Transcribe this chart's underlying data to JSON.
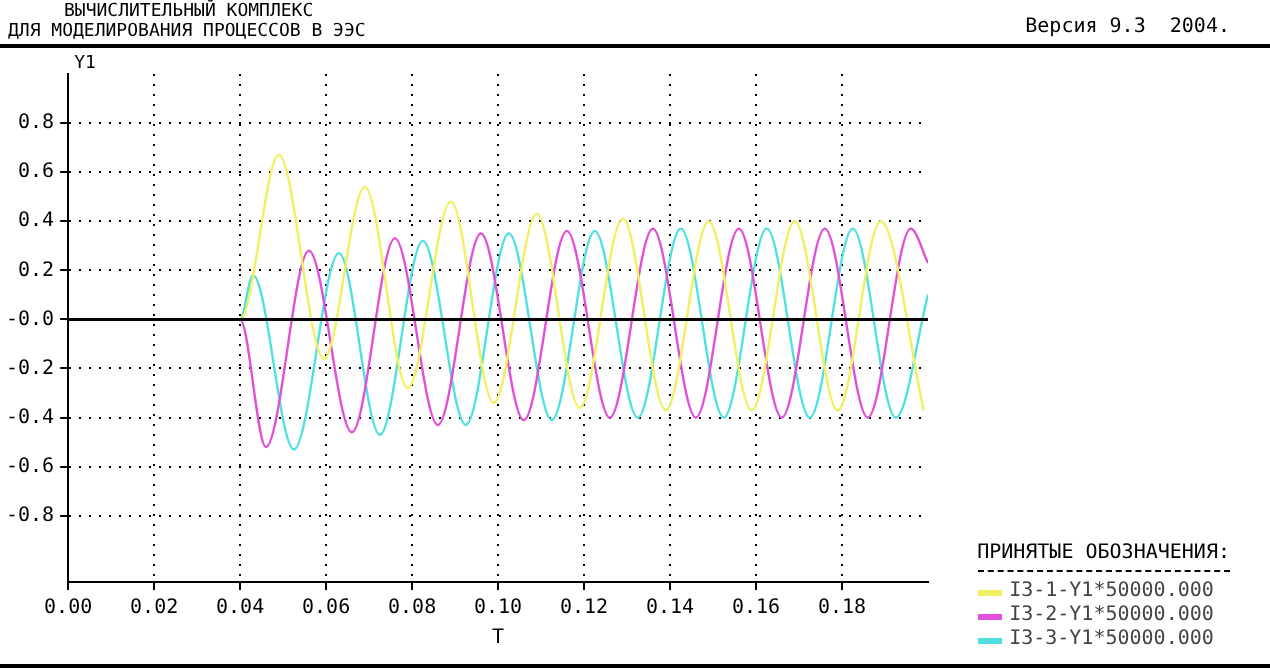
{
  "chart_data": {
    "type": "line",
    "title": "ВЫЧИСЛИТЕЛЬНЫЙ КОМПЛЕКС\nДЛЯ МОДЕЛИРОВАНИЯ ПРОЦЕССОВ В ЭЭС",
    "subtitle": "Версия 9.3  2004.",
    "xlabel": "T",
    "ylabel": "Y1",
    "legend_title": "ПРИНЯТЫЕ ОБОЗНАЧЕНИЯ:",
    "legend": "bottom right",
    "grid": true,
    "marker": "none",
    "line_style": "solid",
    "xlim": [
      0,
      0.2
    ],
    "ylim": [
      -1.07,
      1.0
    ],
    "xticks": [
      {
        "value": 0,
        "label": "0.00"
      },
      {
        "value": 0.02,
        "label": "0.02"
      },
      {
        "value": 0.04,
        "label": "0.04"
      },
      {
        "value": 0.06,
        "label": "0.06"
      },
      {
        "value": 0.08,
        "label": "0.08"
      },
      {
        "value": 0.1,
        "label": "0.10"
      },
      {
        "value": 0.12,
        "label": "0.12"
      },
      {
        "value": 0.14,
        "label": "0.14"
      },
      {
        "value": 0.16,
        "label": "0.16"
      },
      {
        "value": 0.18,
        "label": "0.18"
      }
    ],
    "yticks": [
      -0.8,
      -0.6,
      -0.4,
      -0.2,
      {
        "value": 0,
        "label": "-0.0"
      },
      0.2,
      0.4,
      0.6,
      0.8
    ],
    "ref_lines": [
      {
        "axis": "y",
        "value": 0,
        "color": "#000000"
      }
    ],
    "series": [
      {
        "name": "I3-1-Y1*50000.000",
        "color": "#f0f060",
        "x": [
          0,
          0.04,
          0.049,
          0.0595,
          0.069,
          0.079,
          0.089,
          0.099,
          0.109,
          0.119,
          0.129,
          0.139,
          0.149,
          0.159,
          0.169,
          0.179,
          0.189,
          0.199
        ],
        "values": [
          0,
          0,
          0.67,
          -0.16,
          0.54,
          -0.28,
          0.48,
          -0.34,
          0.43,
          -0.36,
          0.41,
          -0.37,
          0.4,
          -0.37,
          0.4,
          -0.37,
          0.4,
          -0.37
        ]
      },
      {
        "name": "I3-2-Y1*50000.000",
        "color": "#e050d8",
        "x": [
          0,
          0.04,
          0.046,
          0.056,
          0.066,
          0.076,
          0.086,
          0.096,
          0.106,
          0.116,
          0.126,
          0.136,
          0.146,
          0.156,
          0.166,
          0.176,
          0.186,
          0.196,
          0.2
        ],
        "values": [
          0,
          0,
          -0.52,
          0.28,
          -0.46,
          0.33,
          -0.43,
          0.35,
          -0.41,
          0.36,
          -0.4,
          0.37,
          -0.4,
          0.37,
          -0.4,
          0.37,
          -0.4,
          0.37,
          0.23
        ]
      },
      {
        "name": "I3-3-Y1*50000.000",
        "color": "#50e0e0",
        "x": [
          0,
          0.04,
          0.043,
          0.0525,
          0.063,
          0.0725,
          0.0825,
          0.0925,
          0.1025,
          0.1125,
          0.1225,
          0.1325,
          0.1425,
          0.1525,
          0.1625,
          0.1725,
          0.1825,
          0.1925,
          0.2
        ],
        "values": [
          0,
          0,
          0.18,
          -0.53,
          0.27,
          -0.47,
          0.32,
          -0.43,
          0.35,
          -0.41,
          0.36,
          -0.4,
          0.37,
          -0.4,
          0.37,
          -0.4,
          0.37,
          -0.4,
          0.1
        ]
      }
    ]
  }
}
